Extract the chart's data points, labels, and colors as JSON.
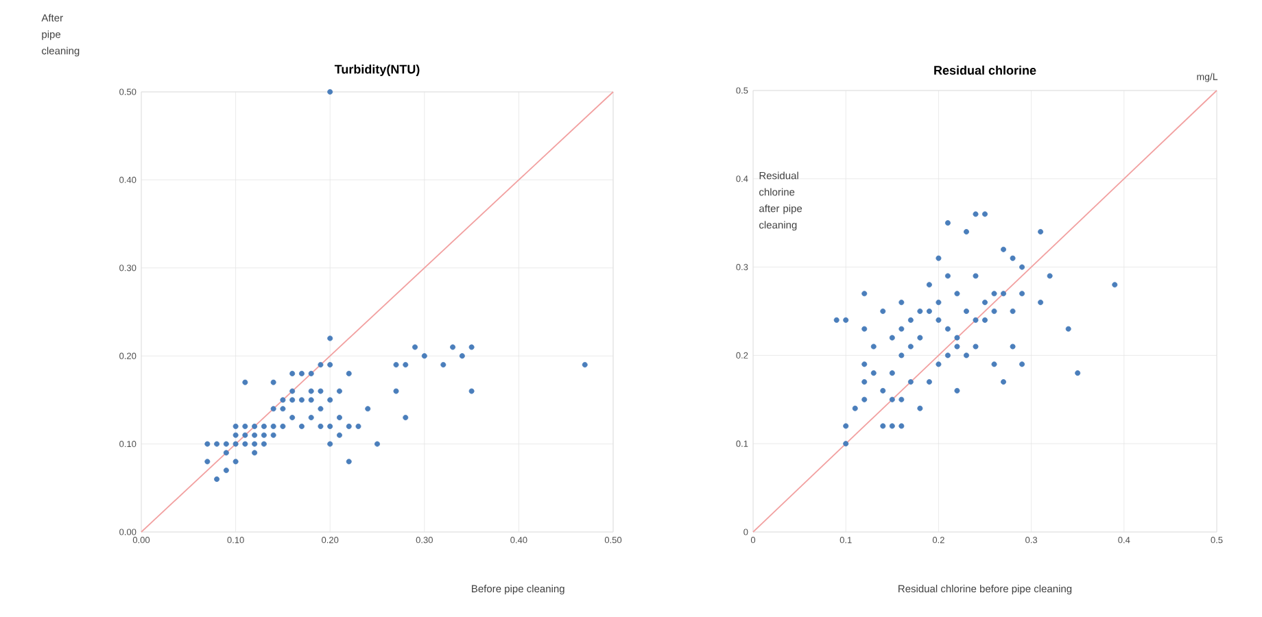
{
  "chart_data": [
    {
      "type": "scatter",
      "title": "Turbidity(NTU)",
      "xlabel": "Before pipe cleaning",
      "ylabel": "After pipe cleaning",
      "grid": true,
      "xlim": [
        0,
        0.5
      ],
      "ylim": [
        0,
        0.5
      ],
      "xticks": [
        {
          "value": 0,
          "label": "0.00"
        },
        {
          "value": 0.1,
          "label": "0.10"
        },
        {
          "value": 0.2,
          "label": "0.20"
        },
        {
          "value": 0.3,
          "label": "0.30"
        },
        {
          "value": 0.4,
          "label": "0.40"
        },
        {
          "value": 0.5,
          "label": "0.50"
        }
      ],
      "yticks": [
        {
          "value": 0,
          "label": "0.00"
        },
        {
          "value": 0.1,
          "label": "0.10"
        },
        {
          "value": 0.2,
          "label": "0.20"
        },
        {
          "value": 0.3,
          "label": "0.30"
        },
        {
          "value": 0.4,
          "label": "0.40"
        },
        {
          "value": 0.5,
          "label": "0.50"
        }
      ],
      "series": [
        {
          "color": "#4a7ebb",
          "x": [
            0.2,
            0.47,
            0.07,
            0.07,
            0.08,
            0.08,
            0.09,
            0.09,
            0.09,
            0.1,
            0.1,
            0.1,
            0.11,
            0.11,
            0.11,
            0.12,
            0.12,
            0.12,
            0.13,
            0.13,
            0.13,
            0.14,
            0.14,
            0.14,
            0.15,
            0.15,
            0.15,
            0.16,
            0.16,
            0.16,
            0.17,
            0.17,
            0.17,
            0.18,
            0.18,
            0.18,
            0.18,
            0.19,
            0.19,
            0.19,
            0.19,
            0.2,
            0.2,
            0.2,
            0.2,
            0.2,
            0.21,
            0.21,
            0.21,
            0.22,
            0.22,
            0.22,
            0.23,
            0.24,
            0.25,
            0.27,
            0.27,
            0.28,
            0.28,
            0.29,
            0.3,
            0.32,
            0.33,
            0.34,
            0.35,
            0.35,
            0.11,
            0.14,
            0.16,
            0.12,
            0.1
          ],
          "values": [
            0.5,
            0.19,
            0.08,
            0.1,
            0.06,
            0.1,
            0.07,
            0.09,
            0.1,
            0.1,
            0.11,
            0.12,
            0.1,
            0.11,
            0.12,
            0.1,
            0.11,
            0.12,
            0.1,
            0.11,
            0.12,
            0.11,
            0.12,
            0.14,
            0.12,
            0.14,
            0.15,
            0.13,
            0.15,
            0.16,
            0.12,
            0.15,
            0.18,
            0.13,
            0.15,
            0.16,
            0.18,
            0.12,
            0.14,
            0.16,
            0.19,
            0.1,
            0.12,
            0.15,
            0.19,
            0.22,
            0.11,
            0.13,
            0.16,
            0.08,
            0.12,
            0.18,
            0.12,
            0.14,
            0.1,
            0.16,
            0.19,
            0.19,
            0.13,
            0.21,
            0.2,
            0.19,
            0.21,
            0.2,
            0.21,
            0.16,
            0.17,
            0.17,
            0.18,
            0.09,
            0.08
          ]
        },
        {
          "type": "line",
          "color": "#f2a0a0",
          "x": [
            0,
            0.5
          ],
          "values": [
            0,
            0.5
          ]
        }
      ]
    },
    {
      "type": "scatter",
      "title": "Residual chlorine",
      "xlabel": "Residual chlorine before pipe cleaning",
      "ylabel": "Residual chlorine after pipe cleaning",
      "annotations": [
        "mg/L"
      ],
      "grid": true,
      "xlim": [
        0,
        0.5
      ],
      "ylim": [
        0,
        0.5
      ],
      "xticks": [
        0,
        0.1,
        0.2,
        0.3,
        0.4,
        0.5
      ],
      "yticks": [
        0,
        0.1,
        0.2,
        0.3,
        0.4,
        0.5
      ],
      "series": [
        {
          "color": "#4a7ebb",
          "x": [
            0.09,
            0.1,
            0.1,
            0.1,
            0.11,
            0.12,
            0.12,
            0.12,
            0.12,
            0.12,
            0.13,
            0.13,
            0.14,
            0.14,
            0.14,
            0.15,
            0.15,
            0.15,
            0.15,
            0.16,
            0.16,
            0.16,
            0.16,
            0.16,
            0.17,
            0.17,
            0.17,
            0.18,
            0.18,
            0.18,
            0.19,
            0.19,
            0.19,
            0.2,
            0.2,
            0.2,
            0.2,
            0.21,
            0.21,
            0.21,
            0.21,
            0.22,
            0.22,
            0.22,
            0.23,
            0.23,
            0.23,
            0.24,
            0.24,
            0.24,
            0.24,
            0.25,
            0.25,
            0.25,
            0.26,
            0.26,
            0.26,
            0.27,
            0.27,
            0.27,
            0.28,
            0.28,
            0.28,
            0.29,
            0.29,
            0.29,
            0.31,
            0.31,
            0.32,
            0.34,
            0.35,
            0.39,
            0.22
          ],
          "values": [
            0.24,
            0.24,
            0.1,
            0.12,
            0.14,
            0.27,
            0.23,
            0.19,
            0.17,
            0.15,
            0.21,
            0.18,
            0.25,
            0.16,
            0.12,
            0.22,
            0.18,
            0.15,
            0.12,
            0.26,
            0.23,
            0.2,
            0.15,
            0.12,
            0.24,
            0.21,
            0.17,
            0.25,
            0.22,
            0.14,
            0.28,
            0.25,
            0.17,
            0.31,
            0.26,
            0.24,
            0.19,
            0.35,
            0.29,
            0.23,
            0.2,
            0.27,
            0.21,
            0.16,
            0.34,
            0.25,
            0.2,
            0.36,
            0.29,
            0.24,
            0.21,
            0.36,
            0.26,
            0.24,
            0.27,
            0.25,
            0.19,
            0.32,
            0.27,
            0.17,
            0.31,
            0.25,
            0.21,
            0.27,
            0.3,
            0.19,
            0.34,
            0.26,
            0.29,
            0.23,
            0.18,
            0.28,
            0.22
          ]
        },
        {
          "type": "line",
          "color": "#f2a0a0",
          "x": [
            0,
            0.5
          ],
          "values": [
            0,
            0.5
          ]
        }
      ]
    }
  ]
}
